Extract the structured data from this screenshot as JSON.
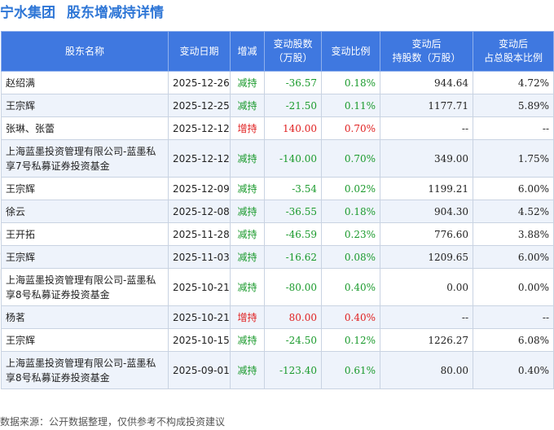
{
  "title": {
    "company": "宁水集团",
    "subject": "股东增减持详情"
  },
  "columns": [
    [
      "股东名称"
    ],
    [
      "变动日期"
    ],
    [
      "增减"
    ],
    [
      "变动股数",
      "（万股）"
    ],
    [
      "变动比例"
    ],
    [
      "变动后",
      "持股数（万股）"
    ],
    [
      "变动后",
      "占总股本比例"
    ]
  ],
  "rows": [
    {
      "name": "赵绍满",
      "date": "2025-12-26",
      "dir": "减持",
      "dir_type": "down",
      "shares": "-36.57",
      "ratio": "0.18%",
      "after_shares": "944.64",
      "after_ratio": "4.72%"
    },
    {
      "name": "王宗辉",
      "date": "2025-12-25",
      "dir": "减持",
      "dir_type": "down",
      "shares": "-21.50",
      "ratio": "0.11%",
      "after_shares": "1177.71",
      "after_ratio": "5.89%"
    },
    {
      "name": "张琳、张蕾",
      "date": "2025-12-12",
      "dir": "增持",
      "dir_type": "up",
      "shares": "140.00",
      "ratio": "0.70%",
      "after_shares": "--",
      "after_ratio": "--"
    },
    {
      "name": "上海蓝墨投资管理有限公司-蓝墨私享7号私募证券投资基金",
      "date": "2025-12-12",
      "dir": "减持",
      "dir_type": "down",
      "shares": "-140.00",
      "ratio": "0.70%",
      "after_shares": "349.00",
      "after_ratio": "1.75%",
      "tall": true
    },
    {
      "name": "王宗辉",
      "date": "2025-12-09",
      "dir": "减持",
      "dir_type": "down",
      "shares": "-3.54",
      "ratio": "0.02%",
      "after_shares": "1199.21",
      "after_ratio": "6.00%"
    },
    {
      "name": "徐云",
      "date": "2025-12-08",
      "dir": "减持",
      "dir_type": "down",
      "shares": "-36.55",
      "ratio": "0.18%",
      "after_shares": "904.30",
      "after_ratio": "4.52%"
    },
    {
      "name": "王开拓",
      "date": "2025-11-28",
      "dir": "减持",
      "dir_type": "down",
      "shares": "-46.59",
      "ratio": "0.23%",
      "after_shares": "776.60",
      "after_ratio": "3.88%"
    },
    {
      "name": "王宗辉",
      "date": "2025-11-03",
      "dir": "减持",
      "dir_type": "down",
      "shares": "-16.62",
      "ratio": "0.08%",
      "after_shares": "1209.65",
      "after_ratio": "6.00%"
    },
    {
      "name": "上海蓝墨投资管理有限公司-蓝墨私享8号私募证券投资基金",
      "date": "2025-10-21",
      "dir": "减持",
      "dir_type": "down",
      "shares": "-80.00",
      "ratio": "0.40%",
      "after_shares": "0.00",
      "after_ratio": "0.00%",
      "tall": true
    },
    {
      "name": "杨茗",
      "date": "2025-10-21",
      "dir": "增持",
      "dir_type": "up",
      "shares": "80.00",
      "ratio": "0.40%",
      "after_shares": "--",
      "after_ratio": "--"
    },
    {
      "name": "王宗辉",
      "date": "2025-10-15",
      "dir": "减持",
      "dir_type": "down",
      "shares": "-24.50",
      "ratio": "0.12%",
      "after_shares": "1226.27",
      "after_ratio": "6.08%"
    },
    {
      "name": "上海蓝墨投资管理有限公司-蓝墨私享8号私募证券投资基金",
      "date": "2025-09-01",
      "dir": "减持",
      "dir_type": "down",
      "shares": "-123.40",
      "ratio": "0.61%",
      "after_shares": "80.00",
      "after_ratio": "0.40%",
      "tall": true
    }
  ],
  "colors": {
    "header_bg": "#3f78e0",
    "title": "#2e76d6",
    "increase": "#e02020",
    "decrease": "#1a9a2c"
  },
  "footer": "数据来源：公开数据整理，仅供参考不构成投资建议"
}
